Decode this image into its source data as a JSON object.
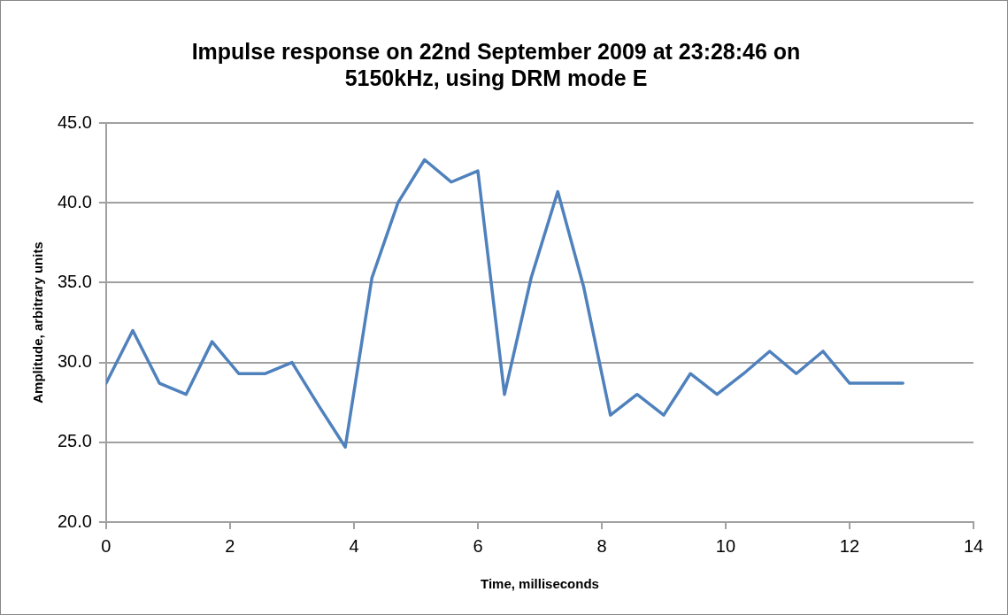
{
  "chart_data": {
    "type": "line",
    "title": "Impulse response on 22nd September 2009 at 23:28:46 on 5150kHz, using DRM mode E",
    "xlabel": "Time, milliseconds",
    "ylabel": "Amplitude, arbitrary units",
    "x": [
      0,
      0.43,
      0.86,
      1.29,
      1.71,
      2.14,
      2.57,
      3.0,
      3.43,
      3.86,
      4.29,
      4.71,
      5.14,
      5.57,
      6.0,
      6.43,
      6.86,
      7.29,
      7.71,
      8.14,
      8.57,
      9.0,
      9.43,
      9.86,
      10.29,
      10.71,
      11.14,
      11.57,
      12.0,
      12.43,
      12.86
    ],
    "series": [
      {
        "color": "#4f81bd",
        "values": [
          28.7,
          32.0,
          28.7,
          28.0,
          31.3,
          29.3,
          29.3,
          30.0,
          27.3,
          24.7,
          35.3,
          40.0,
          42.7,
          41.3,
          42.0,
          28.0,
          35.3,
          40.7,
          34.7,
          26.7,
          28.0,
          26.7,
          29.3,
          28.0,
          29.3,
          30.7,
          29.3,
          30.7,
          28.7,
          28.7,
          28.7
        ]
      }
    ],
    "xlim": [
      0,
      14
    ],
    "xticks": [
      0,
      2,
      4,
      6,
      8,
      10,
      12,
      14
    ],
    "ylim": [
      20,
      45
    ],
    "yticks": [
      {
        "value": 20,
        "label": "20.0"
      },
      {
        "value": 25,
        "label": "25.0"
      },
      {
        "value": 30,
        "label": "30.0"
      },
      {
        "value": 35,
        "label": "35.0"
      },
      {
        "value": 40,
        "label": "40.0"
      },
      {
        "value": 45,
        "label": "45.0"
      }
    ],
    "grid": "y",
    "legend": false,
    "marker": "none",
    "line_style": "solid"
  }
}
